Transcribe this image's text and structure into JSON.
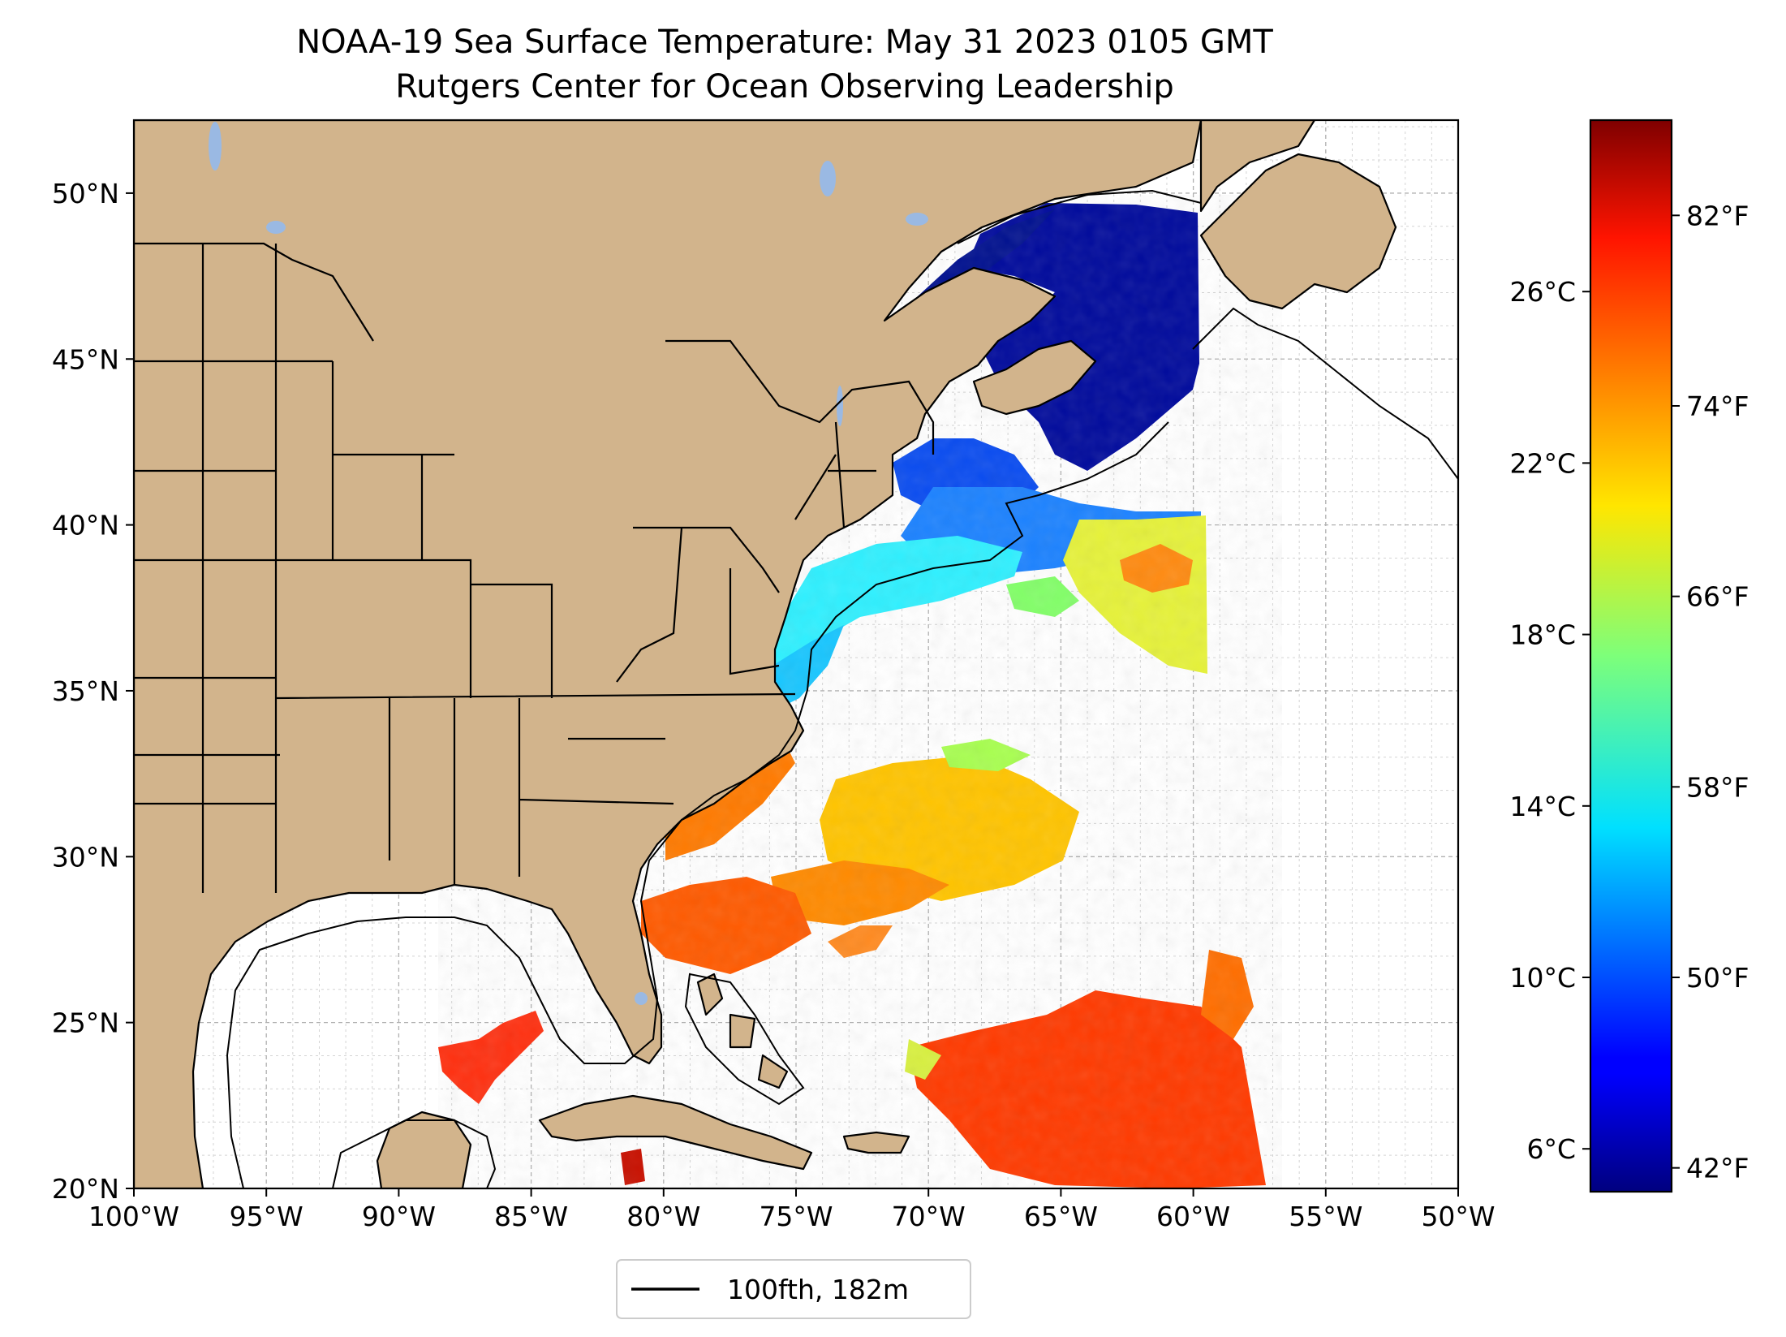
{
  "title_line1": "NOAA-19 Sea Surface Temperature: May 31 2023 0105 GMT",
  "title_line2": "Rutgers Center for Ocean Observing Leadership",
  "map": {
    "lon_range": [
      -100,
      -50
    ],
    "lat_range": [
      20,
      52.2
    ],
    "x_ticks": [
      "100°W",
      "95°W",
      "90°W",
      "85°W",
      "80°W",
      "75°W",
      "70°W",
      "65°W",
      "60°W",
      "55°W",
      "50°W"
    ],
    "x_tick_values": [
      -100,
      -95,
      -90,
      -85,
      -80,
      -75,
      -70,
      -65,
      -60,
      -55,
      -50
    ],
    "y_ticks": [
      "20°N",
      "25°N",
      "30°N",
      "35°N",
      "40°N",
      "45°N",
      "50°N"
    ],
    "y_tick_values": [
      20,
      25,
      30,
      35,
      40,
      45,
      50
    ],
    "grid": "dashed",
    "land_color": "#d2b48c",
    "lake_color": "#9ab9e3"
  },
  "legend": {
    "label": "100fth, 182m",
    "placement": "bottom-center"
  },
  "colorbar": {
    "colormap": "jet",
    "celsius_ticks": [
      "6°C",
      "10°C",
      "14°C",
      "18°C",
      "22°C",
      "26°C"
    ],
    "celsius_values": [
      6,
      10,
      14,
      18,
      22,
      26
    ],
    "fahrenheit_ticks": [
      "42°F",
      "50°F",
      "58°F",
      "66°F",
      "74°F",
      "82°F"
    ],
    "fahrenheit_values": [
      42,
      50,
      58,
      66,
      74,
      82
    ],
    "range_celsius": [
      5,
      30
    ]
  },
  "colors": {
    "jet_low": "#00007f",
    "jet_high": "#7f0000"
  }
}
